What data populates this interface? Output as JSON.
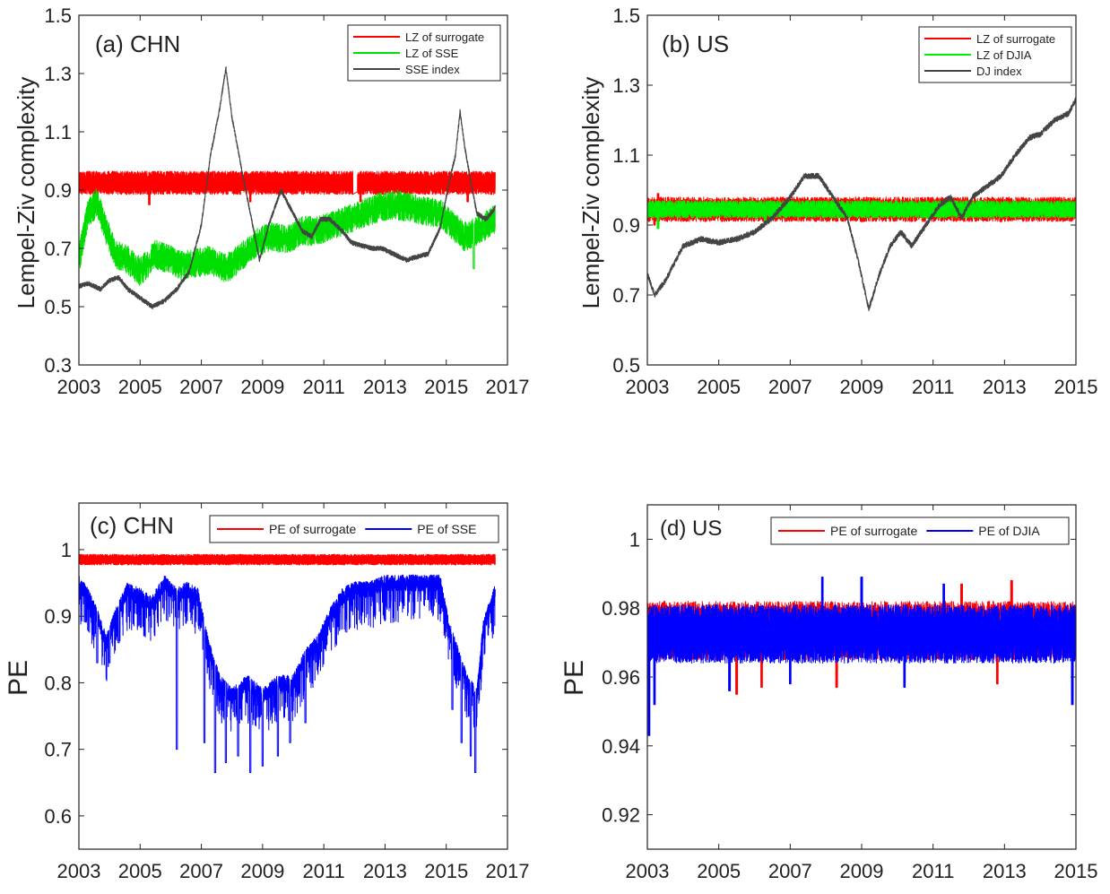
{
  "chart_data": [
    {
      "id": "a",
      "type": "line",
      "panel_label": "(a) CHN",
      "ylabel": "Lempel-Ziv complexity",
      "xlabel": "",
      "xlim": [
        2003,
        2017
      ],
      "ylim": [
        0.3,
        1.5
      ],
      "xticks": [
        2003,
        2005,
        2007,
        2009,
        2011,
        2013,
        2015,
        2017
      ],
      "yticks": [
        0.3,
        0.5,
        0.7,
        0.9,
        1.1,
        1.3,
        1.5
      ],
      "legend_position": "top-right",
      "series": [
        {
          "name": "LZ of surrogate",
          "color": "#ff0000",
          "style": "band",
          "x_range": [
            2003,
            2016.6
          ],
          "center": 0.925,
          "amplitude": 0.04,
          "low_extremes": [
            [
              2003.5,
              0.84
            ],
            [
              2005.3,
              0.85
            ],
            [
              2008.6,
              0.86
            ],
            [
              2012.2,
              0.86
            ],
            [
              2015.7,
              0.86
            ]
          ],
          "gap": [
            2011.95,
            2012.1
          ]
        },
        {
          "name": "LZ of SSE",
          "color": "#00dd00",
          "style": "noisy",
          "x_range": [
            2003,
            2016.6
          ],
          "noise": 0.05,
          "points": [
            [
              2003.0,
              0.66
            ],
            [
              2003.3,
              0.82
            ],
            [
              2003.6,
              0.86
            ],
            [
              2003.9,
              0.76
            ],
            [
              2004.2,
              0.68
            ],
            [
              2004.6,
              0.66
            ],
            [
              2005.0,
              0.62
            ],
            [
              2005.5,
              0.68
            ],
            [
              2006.0,
              0.66
            ],
            [
              2006.4,
              0.64
            ],
            [
              2006.8,
              0.65
            ],
            [
              2007.3,
              0.66
            ],
            [
              2007.8,
              0.63
            ],
            [
              2008.3,
              0.67
            ],
            [
              2008.8,
              0.72
            ],
            [
              2009.3,
              0.74
            ],
            [
              2009.8,
              0.73
            ],
            [
              2010.3,
              0.76
            ],
            [
              2010.8,
              0.76
            ],
            [
              2011.3,
              0.78
            ],
            [
              2011.8,
              0.8
            ],
            [
              2012.3,
              0.82
            ],
            [
              2012.8,
              0.84
            ],
            [
              2013.3,
              0.85
            ],
            [
              2013.8,
              0.84
            ],
            [
              2014.3,
              0.83
            ],
            [
              2014.8,
              0.82
            ],
            [
              2015.2,
              0.78
            ],
            [
              2015.6,
              0.74
            ],
            [
              2016.0,
              0.76
            ],
            [
              2016.3,
              0.78
            ],
            [
              2016.6,
              0.8
            ]
          ],
          "spikes": [
            [
              2015.9,
              0.63
            ]
          ]
        },
        {
          "name": "SSE index",
          "color": "#444444",
          "style": "smooth",
          "x_range": [
            2003,
            2016.6
          ],
          "noise": 0.008,
          "points": [
            [
              2003.0,
              0.57
            ],
            [
              2003.3,
              0.58
            ],
            [
              2003.7,
              0.56
            ],
            [
              2004.0,
              0.59
            ],
            [
              2004.3,
              0.6
            ],
            [
              2004.6,
              0.56
            ],
            [
              2005.0,
              0.53
            ],
            [
              2005.4,
              0.5
            ],
            [
              2005.8,
              0.52
            ],
            [
              2006.2,
              0.56
            ],
            [
              2006.6,
              0.62
            ],
            [
              2007.0,
              0.78
            ],
            [
              2007.3,
              1.02
            ],
            [
              2007.6,
              1.18
            ],
            [
              2007.8,
              1.32
            ],
            [
              2008.0,
              1.15
            ],
            [
              2008.3,
              0.98
            ],
            [
              2008.6,
              0.82
            ],
            [
              2008.9,
              0.66
            ],
            [
              2009.2,
              0.78
            ],
            [
              2009.6,
              0.9
            ],
            [
              2009.9,
              0.84
            ],
            [
              2010.3,
              0.76
            ],
            [
              2010.6,
              0.74
            ],
            [
              2010.9,
              0.8
            ],
            [
              2011.2,
              0.8
            ],
            [
              2011.6,
              0.76
            ],
            [
              2011.9,
              0.72
            ],
            [
              2012.2,
              0.71
            ],
            [
              2012.6,
              0.7
            ],
            [
              2012.9,
              0.7
            ],
            [
              2013.3,
              0.68
            ],
            [
              2013.7,
              0.66
            ],
            [
              2014.0,
              0.67
            ],
            [
              2014.4,
              0.68
            ],
            [
              2014.8,
              0.77
            ],
            [
              2015.1,
              0.93
            ],
            [
              2015.3,
              1.02
            ],
            [
              2015.45,
              1.17
            ],
            [
              2015.6,
              1.05
            ],
            [
              2015.8,
              0.93
            ],
            [
              2016.0,
              0.82
            ],
            [
              2016.3,
              0.8
            ],
            [
              2016.6,
              0.84
            ]
          ]
        }
      ]
    },
    {
      "id": "b",
      "type": "line",
      "panel_label": "(b) US",
      "ylabel": "Lempel-Ziv complexity",
      "xlabel": "",
      "xlim": [
        2003,
        2015
      ],
      "ylim": [
        0.5,
        1.5
      ],
      "xticks": [
        2003,
        2005,
        2007,
        2009,
        2011,
        2013,
        2015
      ],
      "yticks": [
        0.5,
        0.7,
        0.9,
        1.1,
        1.3,
        1.5
      ],
      "legend_position": "top-right",
      "series": [
        {
          "name": "LZ of surrogate",
          "color": "#ff0000",
          "style": "band",
          "x_range": [
            2003,
            2015
          ],
          "center": 0.945,
          "amplitude": 0.035,
          "low_extremes": [
            [
              2003.2,
              0.9
            ],
            [
              2009.0,
              0.91
            ],
            [
              2012.9,
              0.91
            ]
          ],
          "high_extremes": [
            [
              2003.3,
              0.99
            ]
          ]
        },
        {
          "name": "LZ of DJIA",
          "color": "#00ee00",
          "style": "band",
          "x_range": [
            2003,
            2015
          ],
          "center": 0.945,
          "amplitude": 0.025,
          "low_extremes": [
            [
              2003.3,
              0.89
            ],
            [
              2006.3,
              0.91
            ]
          ]
        },
        {
          "name": "DJ index",
          "color": "#444444",
          "style": "smooth",
          "x_range": [
            2003,
            2015
          ],
          "noise": 0.008,
          "points": [
            [
              2003.0,
              0.76
            ],
            [
              2003.2,
              0.7
            ],
            [
              2003.5,
              0.74
            ],
            [
              2004.0,
              0.84
            ],
            [
              2004.5,
              0.86
            ],
            [
              2005.0,
              0.85
            ],
            [
              2005.5,
              0.86
            ],
            [
              2006.0,
              0.88
            ],
            [
              2006.5,
              0.92
            ],
            [
              2007.0,
              0.98
            ],
            [
              2007.4,
              1.04
            ],
            [
              2007.8,
              1.04
            ],
            [
              2008.2,
              0.98
            ],
            [
              2008.6,
              0.92
            ],
            [
              2008.9,
              0.8
            ],
            [
              2009.2,
              0.66
            ],
            [
              2009.5,
              0.76
            ],
            [
              2009.8,
              0.84
            ],
            [
              2010.1,
              0.88
            ],
            [
              2010.4,
              0.84
            ],
            [
              2010.8,
              0.9
            ],
            [
              2011.2,
              0.96
            ],
            [
              2011.5,
              0.98
            ],
            [
              2011.8,
              0.92
            ],
            [
              2012.1,
              0.98
            ],
            [
              2012.5,
              1.01
            ],
            [
              2012.9,
              1.04
            ],
            [
              2013.3,
              1.1
            ],
            [
              2013.7,
              1.15
            ],
            [
              2014.0,
              1.16
            ],
            [
              2014.4,
              1.2
            ],
            [
              2014.8,
              1.22
            ],
            [
              2015.0,
              1.26
            ]
          ]
        }
      ]
    },
    {
      "id": "c",
      "type": "line",
      "panel_label": "(c) CHN",
      "ylabel": "PE",
      "xlabel": "",
      "xlim": [
        2003,
        2017
      ],
      "ylim": [
        0.55,
        1.07
      ],
      "xticks": [
        2003,
        2005,
        2007,
        2009,
        2011,
        2013,
        2015,
        2017
      ],
      "yticks": [
        0.6,
        0.7,
        0.8,
        0.9,
        1
      ],
      "ytick_labels": [
        "0.6",
        "0.7",
        "0.8",
        "0.9",
        "1"
      ],
      "legend_position": "top-right",
      "legend_orientation": "horizontal",
      "series": [
        {
          "name": "PE of surrogate",
          "color": "#ff0000",
          "style": "band",
          "x_range": [
            2003,
            2016.6
          ],
          "center": 0.985,
          "amplitude": 0.008
        },
        {
          "name": "PE of SSE",
          "color": "#0000ff",
          "style": "dips",
          "x_range": [
            2003,
            2016.6
          ],
          "noise": 0.012,
          "points": [
            [
              2003.0,
              0.95
            ],
            [
              2003.3,
              0.93
            ],
            [
              2003.6,
              0.9
            ],
            [
              2003.9,
              0.86
            ],
            [
              2004.2,
              0.9
            ],
            [
              2004.6,
              0.94
            ],
            [
              2005.0,
              0.93
            ],
            [
              2005.4,
              0.92
            ],
            [
              2005.8,
              0.95
            ],
            [
              2006.2,
              0.93
            ],
            [
              2006.5,
              0.94
            ],
            [
              2006.9,
              0.93
            ],
            [
              2007.2,
              0.86
            ],
            [
              2007.6,
              0.8
            ],
            [
              2008.0,
              0.78
            ],
            [
              2008.5,
              0.8
            ],
            [
              2009.0,
              0.78
            ],
            [
              2009.5,
              0.8
            ],
            [
              2010.0,
              0.8
            ],
            [
              2010.4,
              0.84
            ],
            [
              2010.8,
              0.86
            ],
            [
              2011.2,
              0.9
            ],
            [
              2011.6,
              0.93
            ],
            [
              2012.0,
              0.94
            ],
            [
              2012.5,
              0.94
            ],
            [
              2013.0,
              0.95
            ],
            [
              2013.5,
              0.95
            ],
            [
              2014.0,
              0.95
            ],
            [
              2014.4,
              0.95
            ],
            [
              2014.8,
              0.95
            ],
            [
              2015.1,
              0.88
            ],
            [
              2015.4,
              0.84
            ],
            [
              2015.7,
              0.8
            ],
            [
              2016.0,
              0.78
            ],
            [
              2016.2,
              0.88
            ],
            [
              2016.6,
              0.94
            ]
          ],
          "dips": [
            [
              2003.6,
              0.83
            ],
            [
              2004.0,
              0.83
            ],
            [
              2004.3,
              0.86
            ],
            [
              2006.2,
              0.7
            ],
            [
              2007.1,
              0.71
            ],
            [
              2007.45,
              0.665
            ],
            [
              2007.8,
              0.68
            ],
            [
              2008.2,
              0.69
            ],
            [
              2008.6,
              0.665
            ],
            [
              2009.0,
              0.675
            ],
            [
              2009.5,
              0.69
            ],
            [
              2009.9,
              0.71
            ],
            [
              2010.4,
              0.74
            ],
            [
              2015.2,
              0.76
            ],
            [
              2015.5,
              0.71
            ],
            [
              2015.8,
              0.69
            ],
            [
              2015.95,
              0.665
            ]
          ]
        }
      ]
    },
    {
      "id": "d",
      "type": "line",
      "panel_label": "(d) US",
      "ylabel": "PE",
      "xlabel": "",
      "xlim": [
        2003,
        2015
      ],
      "ylim": [
        0.91,
        1.01
      ],
      "xticks": [
        2003,
        2005,
        2007,
        2009,
        2011,
        2013,
        2015
      ],
      "yticks": [
        0.92,
        0.94,
        0.96,
        0.98,
        1
      ],
      "ytick_labels": [
        "0.92",
        "0.94",
        "0.96",
        "0.98",
        "1"
      ],
      "legend_position": "top-right",
      "legend_orientation": "horizontal",
      "series": [
        {
          "name": "PE of surrogate",
          "color": "#ff0000",
          "style": "band",
          "x_range": [
            2003,
            2015
          ],
          "center": 0.9735,
          "amplitude": 0.0085,
          "low_extremes": [
            [
              2005.5,
              0.955
            ],
            [
              2006.2,
              0.957
            ],
            [
              2008.3,
              0.957
            ],
            [
              2012.8,
              0.958
            ]
          ],
          "high_extremes": [
            [
              2013.2,
              0.988
            ],
            [
              2011.8,
              0.987
            ]
          ]
        },
        {
          "name": "PE of DJIA",
          "color": "#0000ff",
          "style": "band",
          "x_range": [
            2003,
            2015
          ],
          "center": 0.9725,
          "amplitude": 0.0085,
          "low_extremes": [
            [
              2003.05,
              0.943
            ],
            [
              2003.2,
              0.952
            ],
            [
              2005.3,
              0.956
            ],
            [
              2007.0,
              0.958
            ],
            [
              2010.2,
              0.957
            ],
            [
              2014.9,
              0.952
            ]
          ],
          "high_extremes": [
            [
              2007.9,
              0.989
            ],
            [
              2009.0,
              0.989
            ],
            [
              2011.3,
              0.987
            ]
          ]
        }
      ]
    }
  ]
}
